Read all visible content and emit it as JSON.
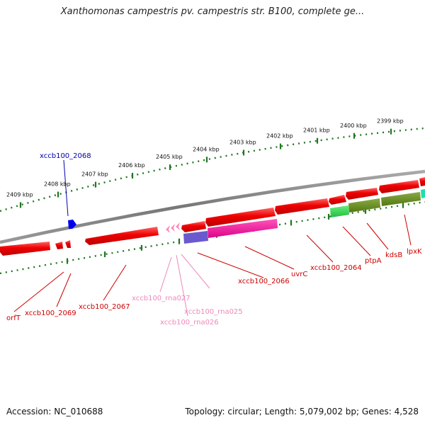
{
  "title": "Xanthomonas campestris pv. campestris str. B100, complete ge...",
  "footer": {
    "accession": "Accession: NC_010688",
    "stats": "Topology: circular; Length: 5,079,002 bp; Genes: 4,528"
  },
  "kbp_ticks": [
    "2409 kbp",
    "2408 kbp",
    "2407 kbp",
    "2406 kbp",
    "2405 kbp",
    "2404 kbp",
    "2403 kbp",
    "2402 kbp",
    "2401 kbp",
    "2400 kbp",
    "2399 kbp"
  ],
  "gene_labels": [
    {
      "id": "xccb100_2068",
      "text": "xccb100_2068",
      "color": "#0000aa"
    },
    {
      "id": "orfT",
      "text": "orfT",
      "color": "#cc0000"
    },
    {
      "id": "xccb100_2069",
      "text": "xccb100_2069",
      "color": "#cc0000"
    },
    {
      "id": "xccb100_2067",
      "text": "xccb100_2067",
      "color": "#cc0000"
    },
    {
      "id": "xccb100_rna027",
      "text": "xccb100_rna027",
      "color": "#ee88bb"
    },
    {
      "id": "xccb100_rna025",
      "text": "xccb100_rna025",
      "color": "#ee88bb"
    },
    {
      "id": "xccb100_rna026",
      "text": "xccb100_rna026",
      "color": "#ee88bb"
    },
    {
      "id": "xccb100_2066",
      "text": "xccb100_2066",
      "color": "#cc0000"
    },
    {
      "id": "uvrC",
      "text": "uvrC",
      "color": "#cc0000"
    },
    {
      "id": "xccb100_2064",
      "text": "xccb100_2064",
      "color": "#cc0000"
    },
    {
      "id": "ptpA",
      "text": "ptpA",
      "color": "#cc0000"
    },
    {
      "id": "kdsB",
      "text": "kdsB",
      "color": "#cc0000"
    },
    {
      "id": "lpxK",
      "text": "lpxK",
      "color": "#cc0000"
    }
  ],
  "colors": {
    "cds": "#ee0000",
    "cds_blue": "#0000ee",
    "rna": "#ff88bb",
    "backbone": "#888888",
    "ruler": "#227722",
    "magenta": "#ee1199",
    "purple": "#6a5acd",
    "green": "#33cc55",
    "olive": "#668822"
  }
}
